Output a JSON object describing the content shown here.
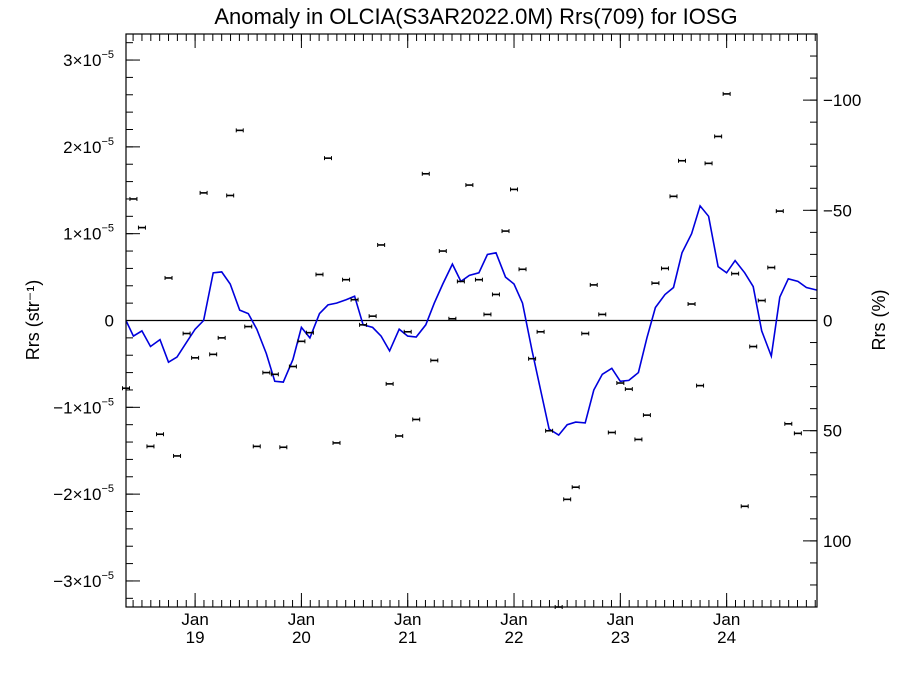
{
  "chart_data": {
    "type": "scatter",
    "title": "Anomaly in OLCIA(S3AR2022.0M) Rrs(709) for IOSG",
    "ylabel_left": "Rrs (str⁻¹)",
    "ylabel_right": "Rrs (%)",
    "ylim": [
      -3.3e-05,
      3.3e-05
    ],
    "ylim_right_pct": [
      130,
      -130
    ],
    "xlim": [
      2018.35,
      2024.85
    ],
    "zero_line": true,
    "y_ticks_left": [
      {
        "value": 3e-05,
        "mant": "3",
        "exp": "−5"
      },
      {
        "value": 2e-05,
        "mant": "2",
        "exp": "−5"
      },
      {
        "value": 1e-05,
        "mant": "1",
        "exp": "−5"
      },
      {
        "value": 0,
        "mant": "0",
        "exp": ""
      },
      {
        "value": -1e-05,
        "mant": "−1",
        "exp": "−5"
      },
      {
        "value": -2e-05,
        "mant": "−2",
        "exp": "−5"
      },
      {
        "value": -3e-05,
        "mant": "−3",
        "exp": "−5"
      }
    ],
    "y_ticks_right": [
      {
        "value": -100,
        "label": "−100"
      },
      {
        "value": -50,
        "label": "−50"
      },
      {
        "value": 0,
        "label": "0"
      },
      {
        "value": 50,
        "label": "50"
      },
      {
        "value": 100,
        "label": "100"
      }
    ],
    "x_ticks": [
      {
        "value": 2019.0,
        "month": "Jan",
        "year": "19"
      },
      {
        "value": 2020.0,
        "month": "Jan",
        "year": "20"
      },
      {
        "value": 2021.0,
        "month": "Jan",
        "year": "21"
      },
      {
        "value": 2022.0,
        "month": "Jan",
        "year": "22"
      },
      {
        "value": 2023.0,
        "month": "Jan",
        "year": "23"
      },
      {
        "value": 2024.0,
        "month": "Jan",
        "year": "24"
      }
    ],
    "series": [
      {
        "style": "points-with-error-bars",
        "color": "#000000",
        "x": [
          2018.35,
          2018.42,
          2018.5,
          2018.58,
          2018.67,
          2018.75,
          2018.83,
          2018.92,
          2019.0,
          2019.08,
          2019.17,
          2019.25,
          2019.33,
          2019.42,
          2019.5,
          2019.58,
          2019.67,
          2019.75,
          2019.83,
          2019.92,
          2020.0,
          2020.08,
          2020.17,
          2020.25,
          2020.33,
          2020.42,
          2020.5,
          2020.58,
          2020.67,
          2020.75,
          2020.83,
          2020.92,
          2021.0,
          2021.08,
          2021.17,
          2021.25,
          2021.33,
          2021.42,
          2021.5,
          2021.58,
          2021.67,
          2021.75,
          2021.83,
          2021.92,
          2022.0,
          2022.08,
          2022.17,
          2022.25,
          2022.33,
          2022.42,
          2022.5,
          2022.58,
          2022.67,
          2022.75,
          2022.83,
          2022.92,
          2023.0,
          2023.08,
          2023.17,
          2023.25,
          2023.33,
          2023.42,
          2023.5,
          2023.58,
          2023.67,
          2023.75,
          2023.83,
          2023.92,
          2024.0,
          2024.08,
          2024.17,
          2024.25,
          2024.33,
          2024.42,
          2024.5,
          2024.58,
          2024.67
        ],
        "y": [
          -7.8e-06,
          1.4e-05,
          1.07e-05,
          -1.45e-05,
          -1.31e-05,
          4.9e-06,
          -1.56e-05,
          -1.5e-06,
          -4.3e-06,
          1.47e-05,
          -3.9e-06,
          -2e-06,
          1.44e-05,
          2.19e-05,
          -7e-07,
          -1.45e-05,
          -6e-06,
          -6.2e-06,
          -1.46e-05,
          -5.3e-06,
          -2.4e-06,
          -1.4e-06,
          5.3e-06,
          1.87e-05,
          -1.41e-05,
          4.7e-06,
          2.4e-06,
          -5e-07,
          5e-07,
          8.7e-06,
          -7.3e-06,
          -1.33e-05,
          -1.3e-06,
          -1.14e-05,
          1.69e-05,
          -4.6e-06,
          8e-06,
          2e-07,
          4.5e-06,
          1.56e-05,
          4.7e-06,
          7e-07,
          3e-06,
          1.03e-05,
          1.51e-05,
          5.9e-06,
          -4.4e-06,
          -1.3e-06,
          -1.27e-05,
          -3.3e-05,
          -2.06e-05,
          -1.92e-05,
          -1.5e-06,
          4.1e-06,
          7e-07,
          -1.29e-05,
          -7.2e-06,
          -7.9e-06,
          -1.37e-05,
          -1.09e-05,
          4.3e-06,
          6e-06,
          1.43e-05,
          1.84e-05,
          1.9e-06,
          -7.5e-06,
          1.81e-05,
          2.12e-05,
          2.61e-05,
          5.4e-06,
          -2.14e-05,
          -3e-06,
          2.3e-06,
          6.1e-06,
          1.26e-05,
          -1.19e-05,
          -1.3e-05
        ]
      },
      {
        "style": "line",
        "color": "#0000dd",
        "x": [
          2018.35,
          2018.42,
          2018.5,
          2018.58,
          2018.67,
          2018.75,
          2018.83,
          2018.92,
          2019.0,
          2019.08,
          2019.17,
          2019.25,
          2019.33,
          2019.42,
          2019.5,
          2019.58,
          2019.67,
          2019.75,
          2019.83,
          2019.92,
          2020.0,
          2020.08,
          2020.17,
          2020.25,
          2020.33,
          2020.42,
          2020.5,
          2020.58,
          2020.67,
          2020.75,
          2020.83,
          2020.92,
          2021.0,
          2021.08,
          2021.17,
          2021.25,
          2021.33,
          2021.42,
          2021.5,
          2021.58,
          2021.67,
          2021.75,
          2021.83,
          2021.92,
          2022.0,
          2022.08,
          2022.17,
          2022.25,
          2022.33,
          2022.42,
          2022.5,
          2022.58,
          2022.67,
          2022.75,
          2022.83,
          2022.92,
          2023.0,
          2023.08,
          2023.17,
          2023.25,
          2023.33,
          2023.42,
          2023.5,
          2023.58,
          2023.67,
          2023.75,
          2023.83,
          2023.92,
          2024.0,
          2024.08,
          2024.17,
          2024.25,
          2024.33,
          2024.42,
          2024.5,
          2024.58,
          2024.67,
          2024.75,
          2024.85
        ],
        "y": [
          0.0,
          -1.8e-06,
          -1.2e-06,
          -3e-06,
          -2.2e-06,
          -4.8e-06,
          -4.2e-06,
          -2.5e-06,
          -1e-06,
          0.0,
          5.5e-06,
          5.6e-06,
          4.2e-06,
          1.2e-06,
          8e-07,
          -1e-06,
          -3.8e-06,
          -7e-06,
          -7.1e-06,
          -4.5e-06,
          -8e-07,
          -2e-06,
          8e-07,
          1.8e-06,
          2e-06,
          2.4e-06,
          2.8e-06,
          -5e-07,
          -8e-07,
          -1.8e-06,
          -3.5e-06,
          -1e-06,
          -1.8e-06,
          -1.9e-06,
          -5e-07,
          2e-06,
          4.2e-06,
          6.5e-06,
          4.5e-06,
          5.2e-06,
          5.5e-06,
          7.6e-06,
          7.8e-06,
          5e-06,
          4.2e-06,
          2e-06,
          -3.5e-06,
          -8e-06,
          -1.25e-05,
          -1.32e-05,
          -1.2e-05,
          -1.17e-05,
          -1.18e-05,
          -8e-06,
          -6.2e-06,
          -5.5e-06,
          -7e-06,
          -6.9e-06,
          -6e-06,
          -2e-06,
          1.5e-06,
          3e-06,
          3.8e-06,
          7.8e-06,
          1e-05,
          1.32e-05,
          1.2e-05,
          6.2e-06,
          5.5e-06,
          6.9e-06,
          5.5e-06,
          3.9e-06,
          -1.2e-06,
          -4.1e-06,
          2.7e-06,
          4.8e-06,
          4.5e-06,
          3.8e-06,
          3.5e-06
        ]
      }
    ]
  }
}
